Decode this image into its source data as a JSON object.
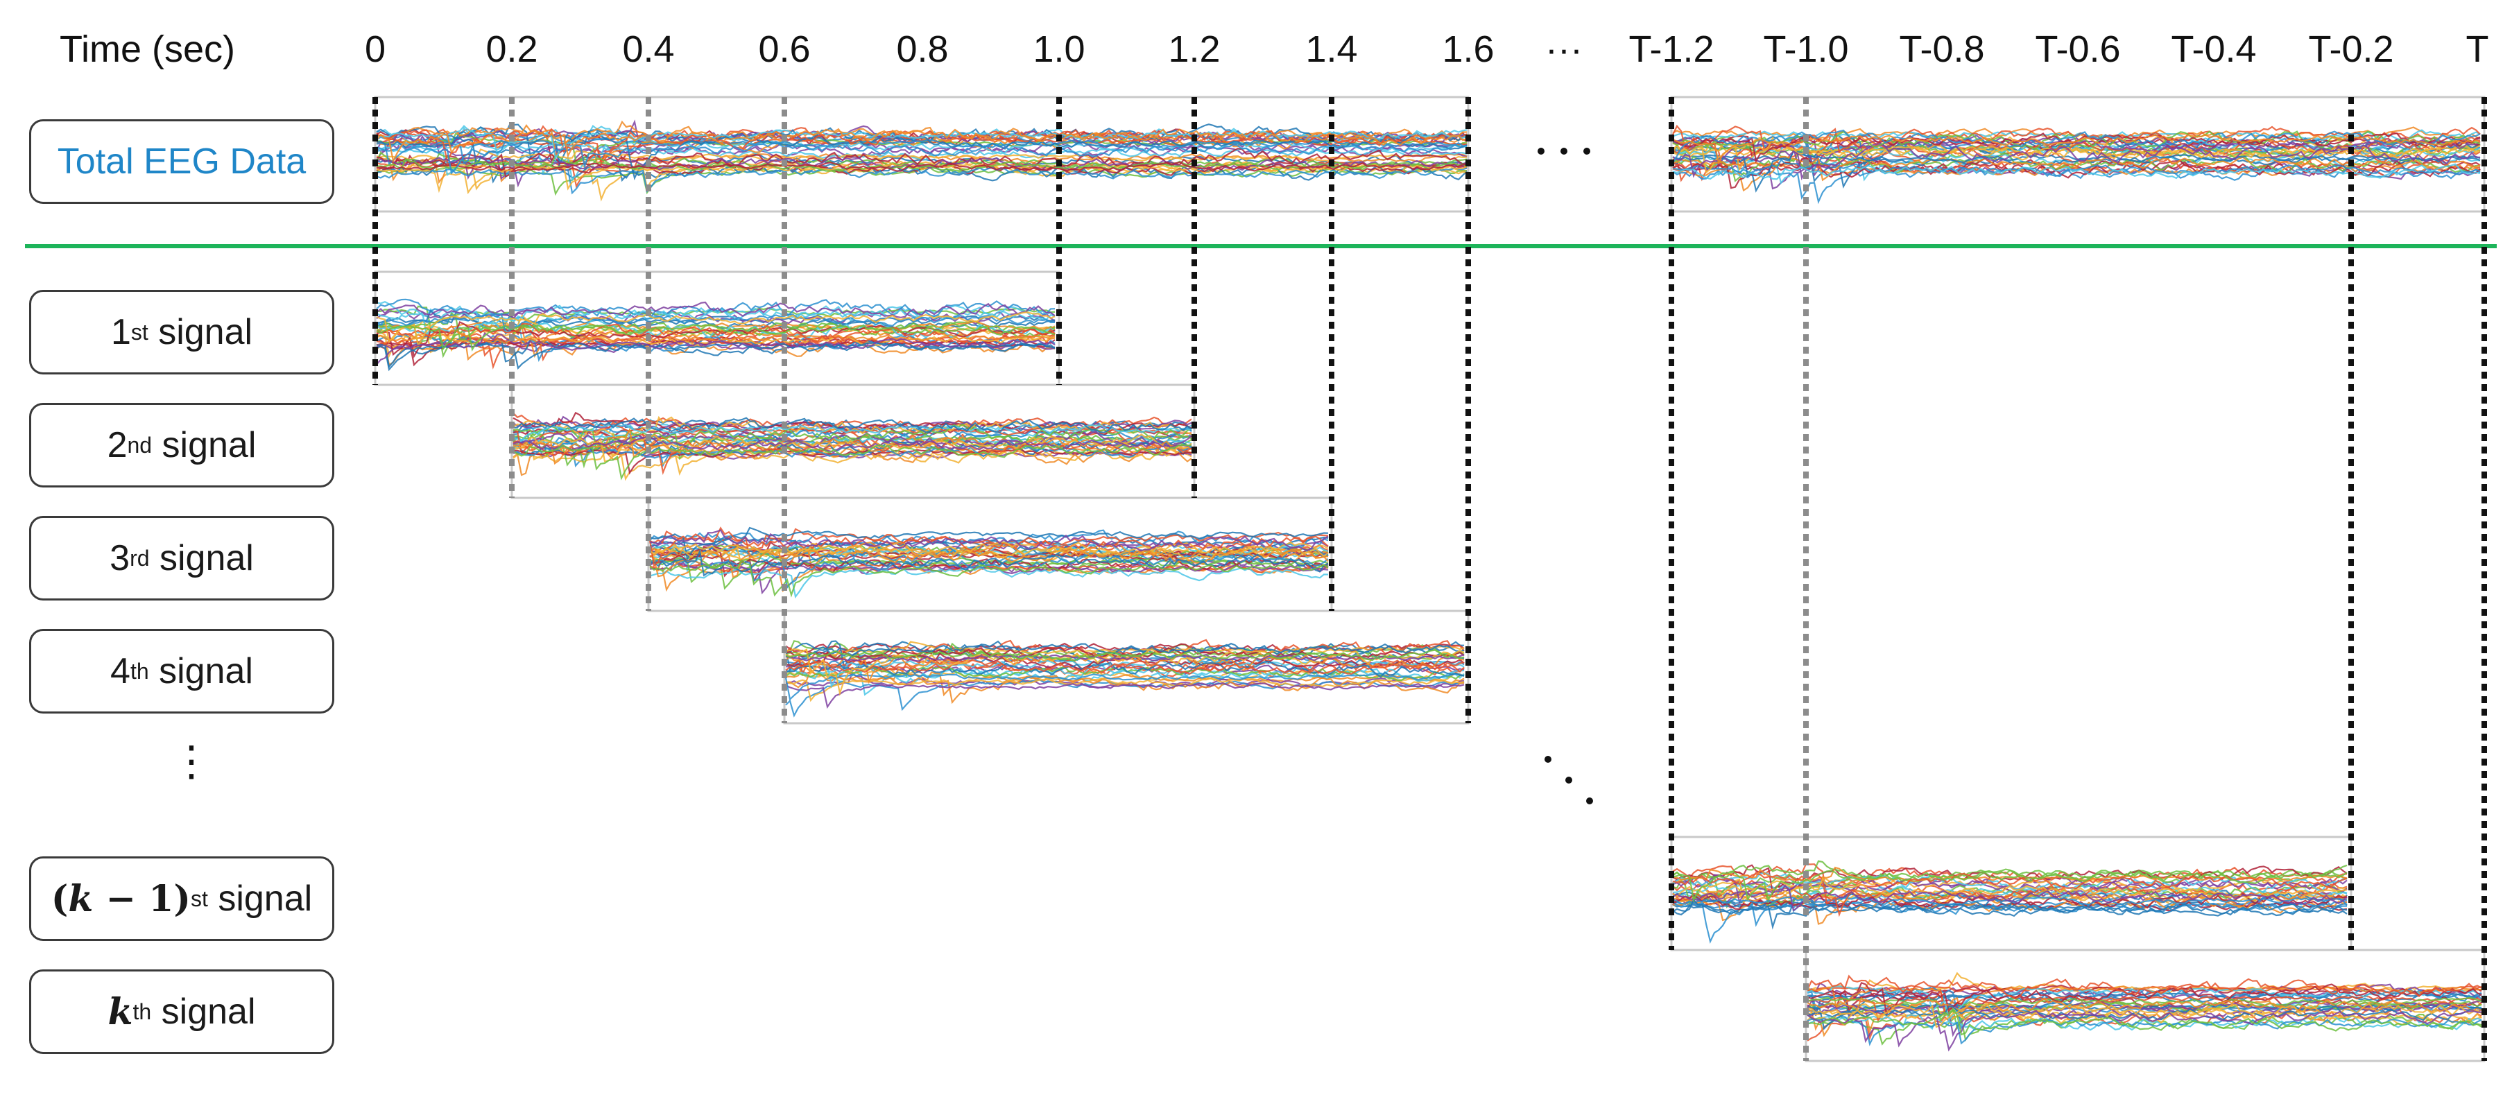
{
  "header": {
    "time_label": "Time (sec)",
    "ticks": [
      "0",
      "0.2",
      "0.4",
      "0.6",
      "0.8",
      "1.0",
      "1.2",
      "1.4",
      "1.6",
      "···",
      "T-1.2",
      "T-1.0",
      "T-0.8",
      "T-0.6",
      "T-0.4",
      "T-0.2",
      "T"
    ]
  },
  "rows": {
    "total": {
      "label": "Total EEG Data"
    },
    "first": {
      "base": "1",
      "sup": "st",
      "word": " signal"
    },
    "second": {
      "base": "2",
      "sup": "nd",
      "word": " signal"
    },
    "third": {
      "base": "3",
      "sup": "rd",
      "word": " signal"
    },
    "fourth": {
      "base": "4",
      "sup": "th",
      "word": " signal"
    },
    "vdots": "⋮",
    "km1": {
      "open": "(",
      "k": "k",
      "minus": " − 1",
      "close": ")",
      "sup": "st",
      "word": " signal"
    },
    "k": {
      "k": "k",
      "sup": "th",
      "word": " signal"
    }
  },
  "colors": {
    "divider": "#1db45a",
    "total_label": "#1f86c8",
    "signal_palette": [
      "#1f77b4",
      "#e8532b",
      "#f2b134",
      "#7e3fa0",
      "#6cbf3f",
      "#4cc7e8",
      "#b02238",
      "#2a8fd0",
      "#f08a24"
    ]
  }
}
